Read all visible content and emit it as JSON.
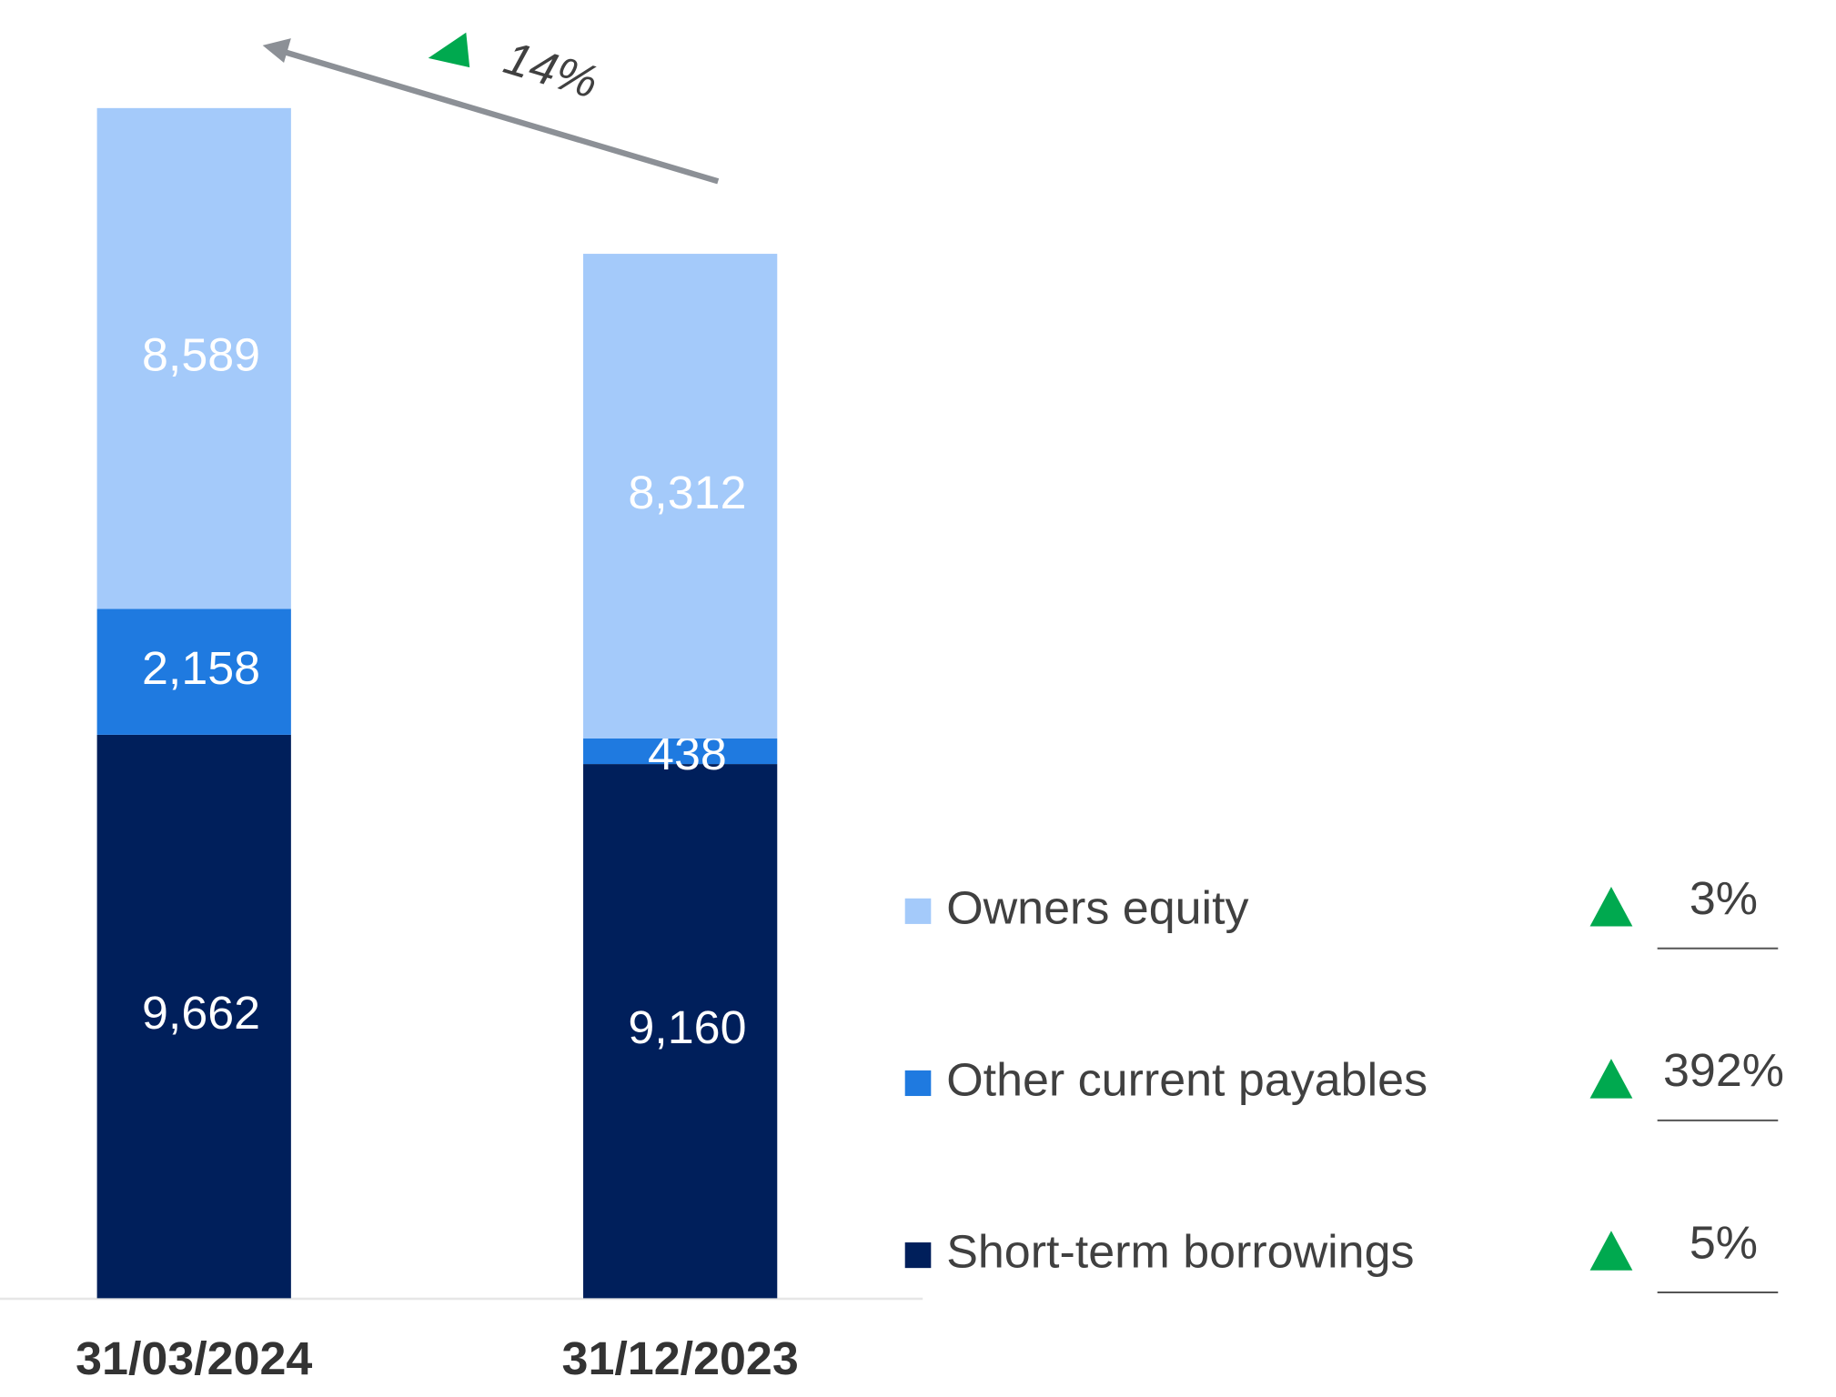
{
  "chart_data": {
    "type": "stacked-bar",
    "categories": [
      "31/03/2024",
      "31/12/2023"
    ],
    "series": [
      {
        "name": "Short-term borrowings",
        "color": "#001f5b",
        "values": [
          9662,
          9160
        ],
        "value_labels": [
          "9,662",
          "9,160"
        ],
        "change": 5,
        "change_label": "5%"
      },
      {
        "name": "Other current payables",
        "color": "#1f7ae0",
        "values": [
          2158,
          438
        ],
        "value_labels": [
          "2,158",
          "438"
        ],
        "change": 392,
        "change_label": "392%"
      },
      {
        "name": "Owners equity",
        "color": "#a4cafa",
        "values": [
          8589,
          8312
        ],
        "value_labels": [
          "8,589",
          "8,312"
        ],
        "change": 3,
        "change_label": "3%"
      }
    ],
    "total_change": 14,
    "total_change_label": "14%"
  }
}
